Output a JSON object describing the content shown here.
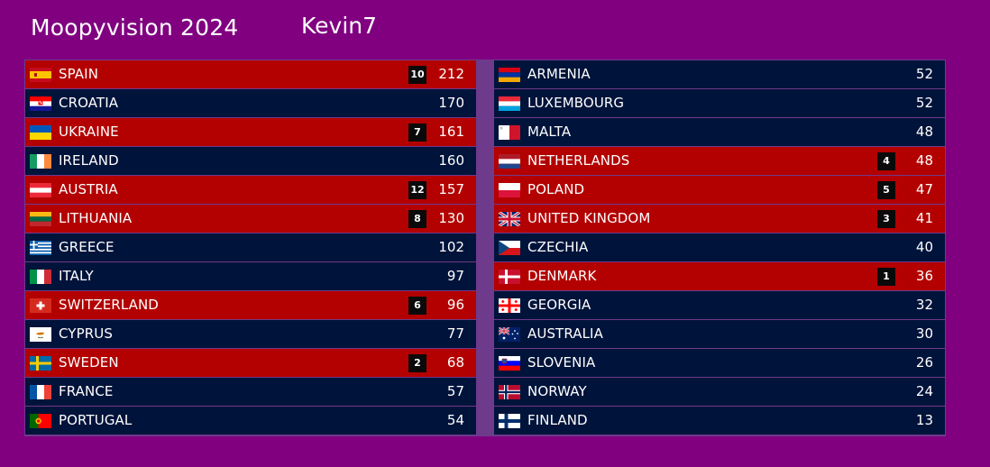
{
  "header": {
    "title": "Moopyvision 2024",
    "user": "Kevin7"
  },
  "colors": {
    "background": "#800080",
    "row_default": "#00133a",
    "row_voted": "#b30000",
    "badge": "#0a0a0a"
  },
  "scoreboard": {
    "left": [
      {
        "country": "SPAIN",
        "flag": "flag-es",
        "points": "10",
        "score": "212"
      },
      {
        "country": "CROATIA",
        "flag": "flag-hr",
        "points": "",
        "score": "170"
      },
      {
        "country": "UKRAINE",
        "flag": "flag-ua",
        "points": "7",
        "score": "161"
      },
      {
        "country": "IRELAND",
        "flag": "flag-ie",
        "points": "",
        "score": "160"
      },
      {
        "country": "AUSTRIA",
        "flag": "flag-at",
        "points": "12",
        "score": "157"
      },
      {
        "country": "LITHUANIA",
        "flag": "flag-lt",
        "points": "8",
        "score": "130"
      },
      {
        "country": "GREECE",
        "flag": "flag-gr",
        "points": "",
        "score": "102"
      },
      {
        "country": "ITALY",
        "flag": "flag-it",
        "points": "",
        "score": "97"
      },
      {
        "country": "SWITZERLAND",
        "flag": "flag-ch",
        "points": "6",
        "score": "96"
      },
      {
        "country": "CYPRUS",
        "flag": "flag-cy",
        "points": "",
        "score": "77"
      },
      {
        "country": "SWEDEN",
        "flag": "flag-se",
        "points": "2",
        "score": "68"
      },
      {
        "country": "FRANCE",
        "flag": "flag-fr",
        "points": "",
        "score": "57"
      },
      {
        "country": "PORTUGAL",
        "flag": "flag-pt",
        "points": "",
        "score": "54"
      }
    ],
    "right": [
      {
        "country": "ARMENIA",
        "flag": "flag-am",
        "points": "",
        "score": "52"
      },
      {
        "country": "LUXEMBOURG",
        "flag": "flag-lu",
        "points": "",
        "score": "52"
      },
      {
        "country": "MALTA",
        "flag": "flag-mt",
        "points": "",
        "score": "48"
      },
      {
        "country": "NETHERLANDS",
        "flag": "flag-nl",
        "points": "4",
        "score": "48"
      },
      {
        "country": "POLAND",
        "flag": "flag-pl",
        "points": "5",
        "score": "47"
      },
      {
        "country": "UNITED KINGDOM",
        "flag": "flag-gb",
        "points": "3",
        "score": "41"
      },
      {
        "country": "CZECHIA",
        "flag": "flag-cz",
        "points": "",
        "score": "40"
      },
      {
        "country": "DENMARK",
        "flag": "flag-dk",
        "points": "1",
        "score": "36"
      },
      {
        "country": "GEORGIA",
        "flag": "flag-ge",
        "points": "",
        "score": "32"
      },
      {
        "country": "AUSTRALIA",
        "flag": "flag-au",
        "points": "",
        "score": "30"
      },
      {
        "country": "SLOVENIA",
        "flag": "flag-si",
        "points": "",
        "score": "26"
      },
      {
        "country": "NORWAY",
        "flag": "flag-no",
        "points": "",
        "score": "24"
      },
      {
        "country": "FINLAND",
        "flag": "flag-fi",
        "points": "",
        "score": "13"
      }
    ]
  }
}
